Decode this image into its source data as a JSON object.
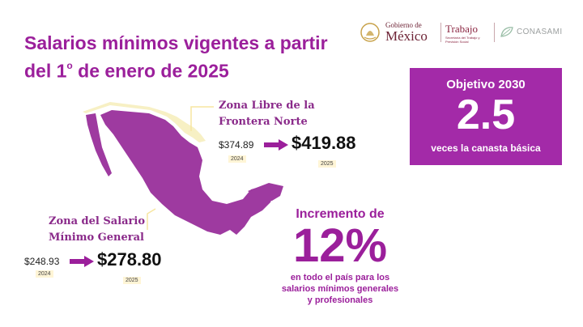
{
  "title": {
    "line1": "Salarios mínimos vigentes a partir",
    "line2_pre": "del 1",
    "line2_sup": "o",
    "line2_post": " de enero de 2025"
  },
  "logos": {
    "gobierno_small": "Gobierno de",
    "gobierno_big": "México",
    "trabajo": "Trabajo",
    "trabajo_sub": "Secretaría del Trabajo y Previsión Social",
    "conasami": "CONASAMI"
  },
  "objetivo": {
    "label": "Objetivo 2030",
    "value": "2.5",
    "desc": "veces la canasta básica"
  },
  "zona_norte": {
    "label_line1": "Zona Libre de la",
    "label_line2": "Frontera Norte",
    "old_value": "$374.89",
    "old_year": "2024",
    "new_value": "$419.88",
    "new_year": "2025"
  },
  "zona_general": {
    "label_line1": "Zona del Salario",
    "label_line2": "Mínimo General",
    "old_value": "$248.93",
    "old_year": "2024",
    "new_value": "$278.80",
    "new_year": "2025"
  },
  "incremento": {
    "label": "Incremento de",
    "value": "12%",
    "desc_line1": "en todo el país para los",
    "desc_line2": "salarios mínimos generales",
    "desc_line3": "y profesionales"
  },
  "colors": {
    "accent": "#9b1f9b",
    "box": "#a32aa8",
    "map_main": "#9e3aa0",
    "map_border": "#f7f0c4"
  }
}
